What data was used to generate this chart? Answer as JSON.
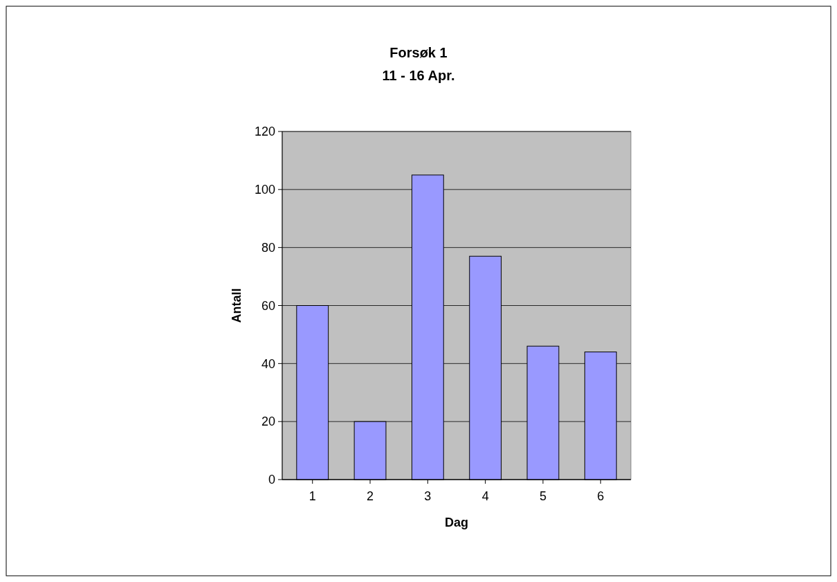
{
  "chart_data": {
    "type": "bar",
    "title": "Forsøk 1",
    "subtitle": "11 - 16 Apr.",
    "xlabel": "Dag",
    "ylabel": "Antall",
    "categories": [
      "1",
      "2",
      "3",
      "4",
      "5",
      "6"
    ],
    "values": [
      60,
      20,
      105,
      77,
      46,
      44
    ],
    "color": "#9999ff",
    "ylim": [
      0,
      120
    ],
    "yticks": [
      0,
      20,
      40,
      60,
      80,
      100,
      120
    ],
    "grid": "y"
  }
}
